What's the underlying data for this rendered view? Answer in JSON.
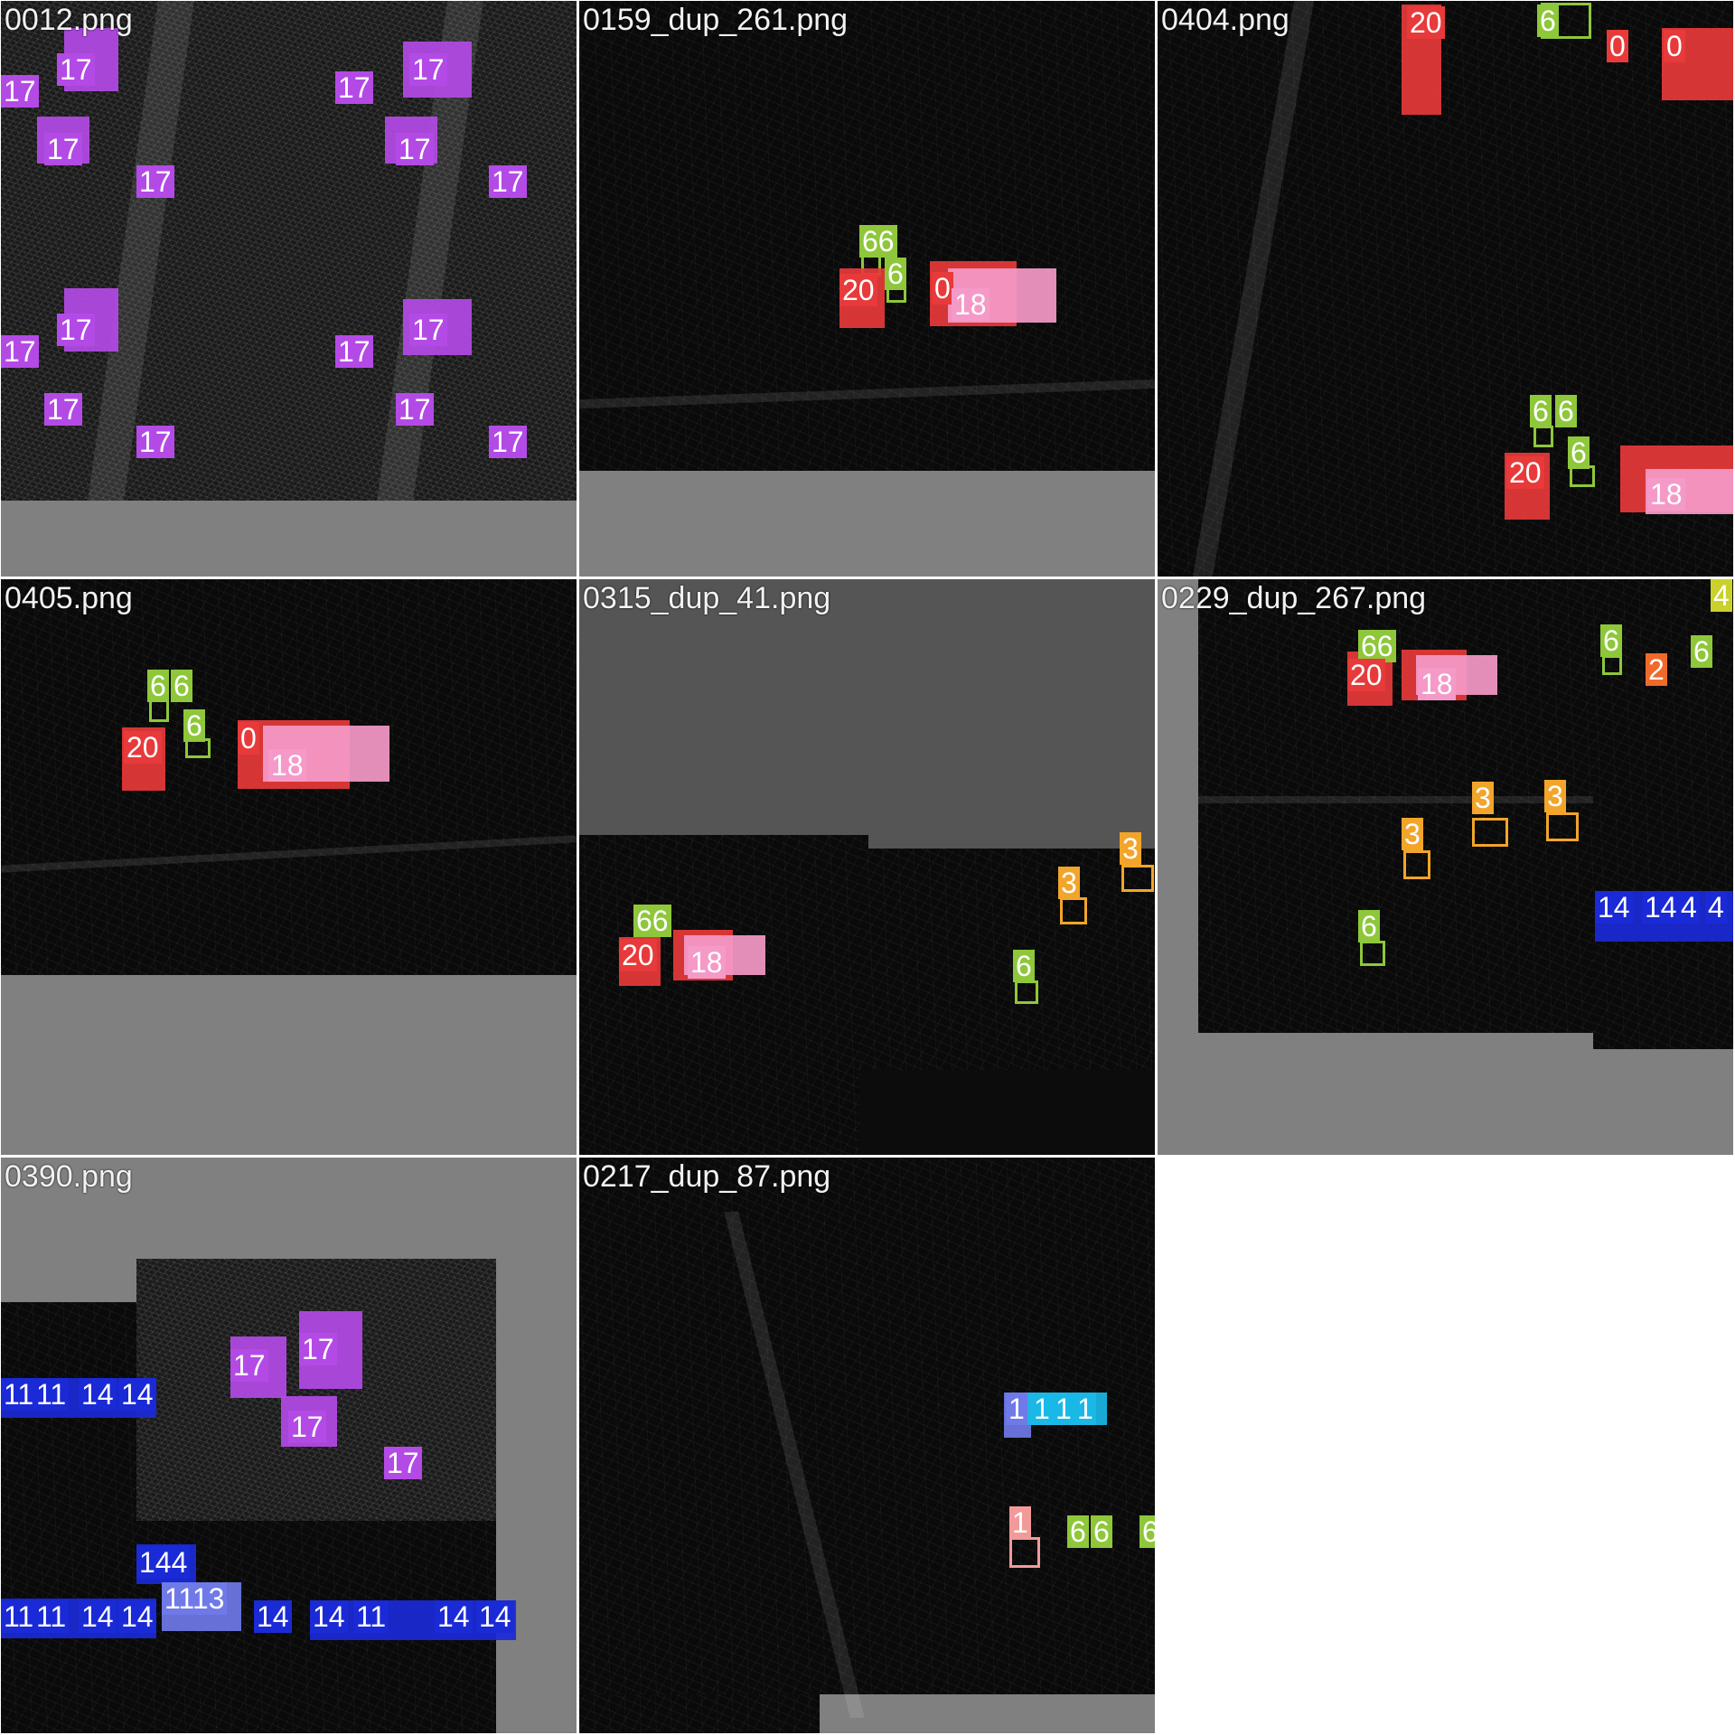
{
  "grid": {
    "tiles": [
      {
        "title": "0012.png"
      },
      {
        "title": "0159_dup_261.png"
      },
      {
        "title": "0404.png"
      },
      {
        "title": "0405.png"
      },
      {
        "title": "0315_dup_41.png"
      },
      {
        "title": "0229_dup_267.png"
      },
      {
        "title": "0390.png"
      },
      {
        "title": "0217_dup_87.png"
      }
    ]
  },
  "class_colors": {
    "0": "#e83a3a",
    "1": "#f29a9a",
    "2": "#f06a2a",
    "3": "#f2a52a",
    "6": "#8ec73a",
    "11": "#1ab8e6",
    "13": "#6f7ae8",
    "14": "#1a2ad6",
    "17": "#b34ae6",
    "18": "#f59ac8",
    "20": "#e83a3a"
  },
  "detections": {
    "t0012": [
      "17",
      "17",
      "17",
      "17",
      "17",
      "17",
      "17",
      "17",
      "17",
      "17",
      "17",
      "17"
    ],
    "t0159": [
      "66",
      "6",
      "20",
      "0",
      "0",
      "18"
    ],
    "t0404": [
      "20",
      "20",
      "6",
      "0",
      "0",
      "0",
      "0",
      "0",
      "6",
      "6",
      "6",
      "20",
      "0",
      "18",
      "0"
    ],
    "t0405": [
      "6",
      "6",
      "6",
      "20",
      "0",
      "0",
      "0",
      "18"
    ],
    "t0315": [
      "66",
      "20",
      "0",
      "18",
      "3",
      "3",
      "6"
    ],
    "t0229": [
      "66",
      "20",
      "0",
      "18",
      "6",
      "6",
      "2",
      "6",
      "4",
      "3",
      "3",
      "3",
      "6",
      "14",
      "14",
      "4",
      "4"
    ],
    "t0390": [
      "17",
      "17",
      "17",
      "17",
      "11",
      "11",
      "1",
      "14",
      "14",
      "144",
      "11",
      "11",
      "1",
      "14",
      "14",
      "1113",
      "14",
      "14",
      "1",
      "1",
      "11",
      "1",
      "14",
      "14"
    ],
    "t0217": [
      "1",
      "1",
      "1",
      "1",
      "1",
      "1",
      "6",
      "6",
      "6"
    ]
  }
}
